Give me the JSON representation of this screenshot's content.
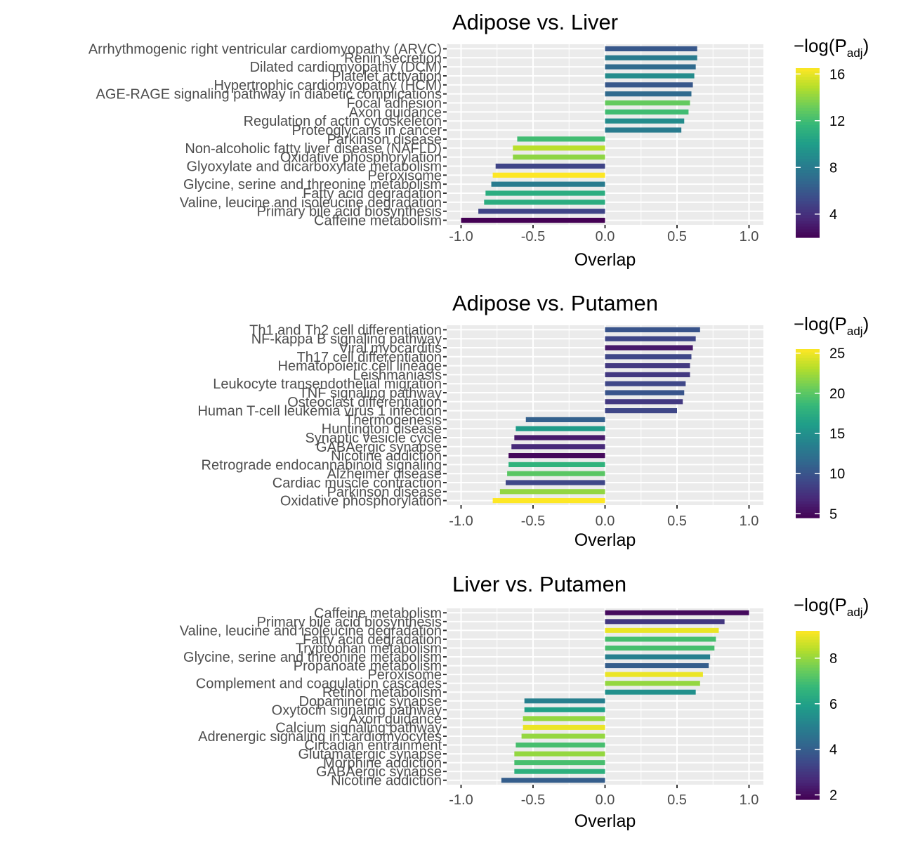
{
  "chart_data": [
    {
      "type": "bar",
      "orientation": "horizontal",
      "title": "Adipose vs. Liver",
      "xlabel": "Overlap",
      "ylabel": "",
      "xlim": [
        -1.0,
        1.0
      ],
      "xticks": [
        "-1.0",
        "-0.5",
        "0.0",
        "0.5",
        "1.0"
      ],
      "grid": true,
      "legend": {
        "title_main": "−log(P",
        "title_sub": "adj",
        "title_close": ")",
        "range": [
          2,
          16.5
        ],
        "ticks": [
          4,
          8,
          12,
          16
        ],
        "position": "right",
        "palette": "viridis"
      },
      "categories": [
        "Arrhythmogenic right ventricular cardiomyopathy (ARVC)",
        "Renin secretion",
        "Dilated cardiomyopathy (DCM)",
        "Platelet activation",
        "Hypertrophic cardiomyopathy (HCM)",
        "AGE-RAGE signaling pathway in diabetic complications",
        "Focal adhesion",
        "Axon guidance",
        "Regulation of actin cytoskeleton",
        "Proteoglycans in cancer",
        "Parkinson disease",
        "Non-alcoholic fatty liver disease (NAFLD)",
        "Oxidative phosphorylation",
        "Glyoxylate and dicarboxylate metabolism",
        "Peroxisome",
        "Glycine, serine and threonine metabolism",
        "Fatty acid degradation",
        "Valine, leucine and isoleucine degradation",
        "Primary bile acid biosynthesis",
        "Caffeine metabolism"
      ],
      "values": [
        0.64,
        0.64,
        0.63,
        0.62,
        0.61,
        0.6,
        0.59,
        0.58,
        0.55,
        0.53,
        -0.61,
        -0.64,
        -0.64,
        -0.76,
        -0.78,
        -0.79,
        -0.83,
        -0.84,
        -0.88,
        -1.0
      ],
      "color_values": [
        6,
        8,
        7,
        9,
        6,
        7,
        13,
        12,
        9,
        8,
        12,
        15,
        14,
        5,
        16.5,
        8,
        11,
        11,
        5,
        2
      ]
    },
    {
      "type": "bar",
      "orientation": "horizontal",
      "title": "Adipose vs. Putamen",
      "xlabel": "Overlap",
      "ylabel": "",
      "xlim": [
        -1.0,
        1.0
      ],
      "xticks": [
        "-1.0",
        "-0.5",
        "0.0",
        "0.5",
        "1.0"
      ],
      "grid": true,
      "legend": {
        "title_main": "−log(P",
        "title_sub": "adj",
        "title_close": ")",
        "range": [
          4.5,
          25.5
        ],
        "ticks": [
          5,
          10,
          15,
          20,
          25
        ],
        "position": "right",
        "palette": "viridis"
      },
      "categories": [
        "Th1 and Th2 cell differentiation",
        "NF-kappa B signaling pathway",
        "Viral myocarditis",
        "Th17 cell differentiation",
        "Hematopoietic cell lineage",
        "Leishmaniasis",
        "Leukocyte transendothelial migration",
        "TNF signaling pathway",
        "Osteoclast differentiation",
        "Human T-cell leukemia virus 1 infection",
        "Thermogenesis",
        "Huntington disease",
        "Synaptic vesicle cycle",
        "GABAergic synapse",
        "Nicotine addiction",
        "Retrograde endocannabinoid signaling",
        "Alzheimer disease",
        "Cardiac muscle contraction",
        "Parkinson disease",
        "Oxidative phosphorylation"
      ],
      "values": [
        0.66,
        0.63,
        0.61,
        0.6,
        0.59,
        0.59,
        0.56,
        0.55,
        0.54,
        0.5,
        -0.55,
        -0.62,
        -0.63,
        -0.65,
        -0.67,
        -0.67,
        -0.68,
        -0.69,
        -0.73,
        -0.78
      ],
      "color_values": [
        10,
        9,
        6,
        9,
        8,
        8,
        9,
        10,
        8,
        9,
        11,
        16,
        6,
        7,
        5,
        18,
        20,
        9,
        22,
        25.5
      ]
    },
    {
      "type": "bar",
      "orientation": "horizontal",
      "title": "Liver vs. Putamen",
      "xlabel": "Overlap",
      "ylabel": "",
      "xlim": [
        -1.0,
        1.0
      ],
      "xticks": [
        "-1.0",
        "-0.5",
        "0.0",
        "0.5",
        "1.0"
      ],
      "grid": true,
      "legend": {
        "title_main": "−log(P",
        "title_sub": "adj",
        "title_close": ")",
        "range": [
          1.8,
          9.2
        ],
        "ticks": [
          2,
          4,
          6,
          8
        ],
        "position": "right",
        "palette": "viridis"
      },
      "categories": [
        "Caffeine metabolism",
        "Primary bile acid biosynthesis",
        "Valine, leucine and isoleucine degradation",
        "Fatty acid degradation",
        "Tryptophan metabolism",
        "Glycine, serine and threonine metabolism",
        "Propanoate metabolism",
        "Peroxisome",
        "Complement and coagulation cascades",
        "Retinol metabolism",
        "Dopaminergic synapse",
        "Oxytocin signaling pathway",
        "Axon guidance",
        "Calcium signaling pathway",
        "Adrenergic signaling in cardiomyocytes",
        "Circadian entrainment",
        "Glutamatergic synapse",
        "Morphine addiction",
        "GABAergic synapse",
        "Nicotine addiction"
      ],
      "values": [
        1.0,
        0.83,
        0.79,
        0.77,
        0.76,
        0.73,
        0.72,
        0.68,
        0.66,
        0.63,
        -0.56,
        -0.56,
        -0.57,
        -0.57,
        -0.58,
        -0.62,
        -0.63,
        -0.63,
        -0.63,
        -0.72
      ],
      "color_values": [
        2,
        3,
        9,
        7,
        7,
        5,
        4,
        9,
        8,
        5.5,
        5,
        6,
        8,
        9,
        8,
        7,
        8,
        7,
        6.5,
        4
      ]
    }
  ]
}
